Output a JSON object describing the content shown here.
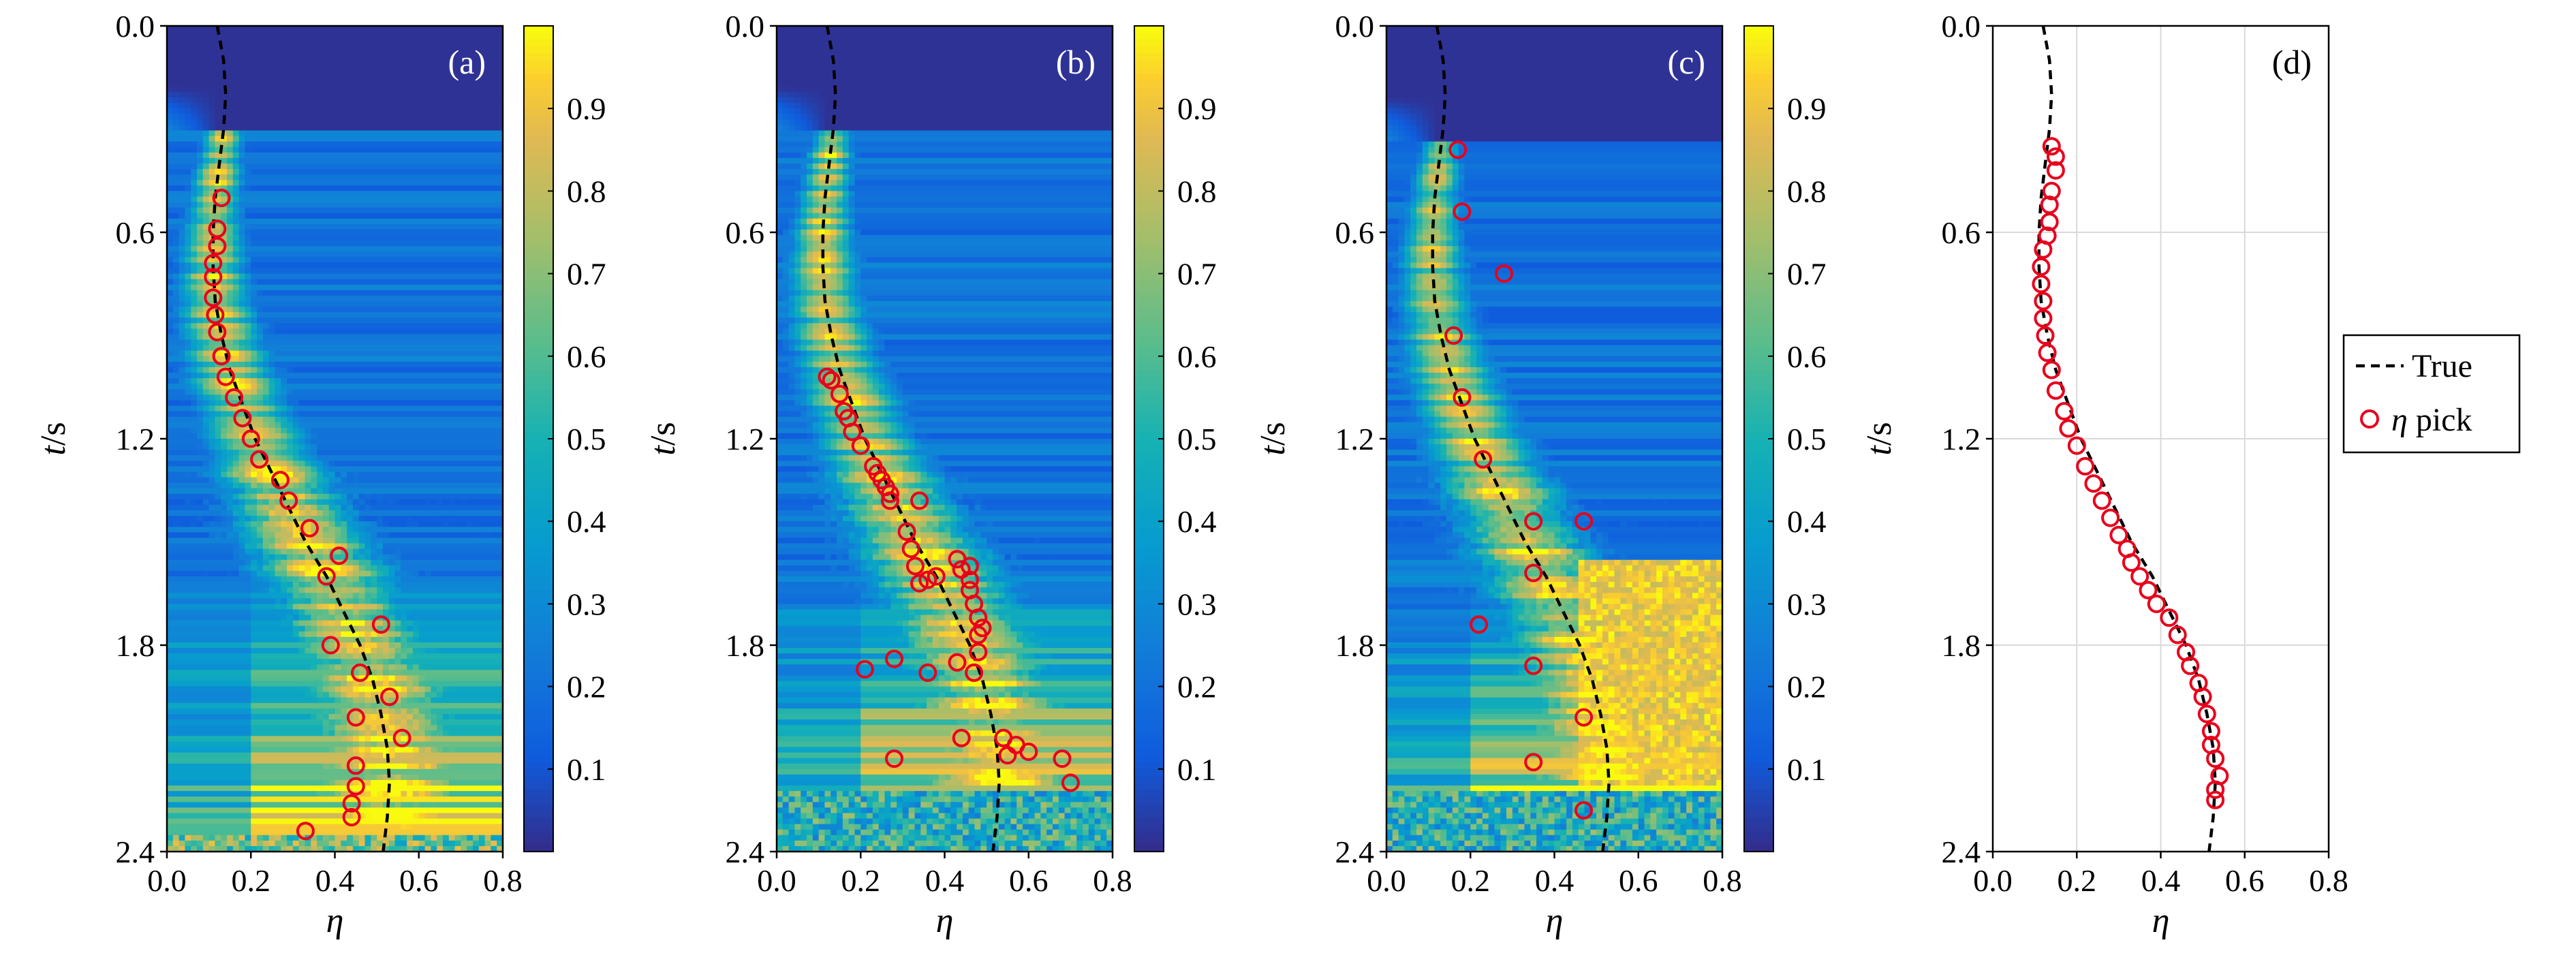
{
  "chart_data": [
    {
      "type": "heatmap",
      "panel_label": "(a)",
      "xlabel": "η",
      "ylabel": "t/s",
      "xlim": [
        0,
        0.8
      ],
      "ylim": [
        0,
        2.4
      ],
      "xticks": [
        "0.0",
        "0.2",
        "0.4",
        "0.6",
        "0.8"
      ],
      "yticks": [
        "0.0",
        "0.6",
        "1.2",
        "1.8",
        "2.4"
      ],
      "colorbar": {
        "range": [
          0,
          1
        ],
        "ticks": [
          "0.1",
          "0.2",
          "0.3",
          "0.4",
          "0.5",
          "0.6",
          "0.7",
          "0.8",
          "0.9"
        ]
      },
      "true_curve": {
        "t": [
          0,
          0.1,
          0.2,
          0.3,
          0.4,
          0.5,
          0.6,
          0.7,
          0.8,
          0.9,
          1.0,
          1.1,
          1.2,
          1.3,
          1.4,
          1.5,
          1.6,
          1.7,
          1.8,
          1.9,
          2.0,
          2.1,
          2.2,
          2.3,
          2.4
        ],
        "eta": [
          0.12,
          0.135,
          0.14,
          0.135,
          0.125,
          0.115,
          0.11,
          0.11,
          0.115,
          0.13,
          0.15,
          0.18,
          0.21,
          0.25,
          0.29,
          0.33,
          0.38,
          0.42,
          0.46,
          0.49,
          0.51,
          0.525,
          0.53,
          0.525,
          0.515
        ]
      },
      "picks": {
        "eta": [
          0.13,
          0.12,
          0.12,
          0.11,
          0.11,
          0.11,
          0.115,
          0.12,
          0.13,
          0.14,
          0.16,
          0.18,
          0.2,
          0.22,
          0.27,
          0.29,
          0.34,
          0.41,
          0.38,
          0.51,
          0.39,
          0.46,
          0.53,
          0.45,
          0.56,
          0.45,
          0.45,
          0.44,
          0.44,
          0.33
        ],
        "t": [
          0.5,
          0.59,
          0.64,
          0.69,
          0.73,
          0.79,
          0.84,
          0.89,
          0.96,
          1.02,
          1.08,
          1.14,
          1.2,
          1.26,
          1.32,
          1.38,
          1.46,
          1.54,
          1.6,
          1.74,
          1.8,
          1.88,
          1.95,
          2.01,
          2.07,
          2.15,
          2.21,
          2.26,
          2.3,
          2.34
        ]
      },
      "heat_ridge_start": 0.3
    },
    {
      "type": "heatmap",
      "panel_label": "(b)",
      "xlabel": "η",
      "ylabel": "t/s",
      "xlim": [
        0,
        0.8
      ],
      "ylim": [
        0,
        2.4
      ],
      "xticks": [
        "0.0",
        "0.2",
        "0.4",
        "0.6",
        "0.8"
      ],
      "yticks": [
        "0.0",
        "0.6",
        "1.2",
        "1.8",
        "2.4"
      ],
      "colorbar": {
        "range": [
          0,
          1
        ],
        "ticks": [
          "0.1",
          "0.2",
          "0.3",
          "0.4",
          "0.5",
          "0.6",
          "0.7",
          "0.8",
          "0.9"
        ]
      },
      "true_curve": {
        "t": [
          0,
          0.1,
          0.2,
          0.3,
          0.4,
          0.5,
          0.6,
          0.7,
          0.8,
          0.9,
          1.0,
          1.1,
          1.2,
          1.3,
          1.4,
          1.5,
          1.6,
          1.7,
          1.8,
          1.9,
          2.0,
          2.1,
          2.2,
          2.3,
          2.4
        ],
        "eta": [
          0.12,
          0.135,
          0.14,
          0.135,
          0.125,
          0.115,
          0.11,
          0.11,
          0.115,
          0.13,
          0.15,
          0.18,
          0.21,
          0.25,
          0.29,
          0.33,
          0.38,
          0.42,
          0.46,
          0.49,
          0.51,
          0.525,
          0.53,
          0.525,
          0.515
        ]
      },
      "picks": {
        "eta": [
          0.12,
          0.13,
          0.15,
          0.16,
          0.17,
          0.18,
          0.2,
          0.23,
          0.24,
          0.25,
          0.26,
          0.27,
          0.27,
          0.34,
          0.31,
          0.32,
          0.33,
          0.34,
          0.36,
          0.38,
          0.43,
          0.44,
          0.46,
          0.46,
          0.46,
          0.47,
          0.48,
          0.49,
          0.48,
          0.48,
          0.43,
          0.47,
          0.36,
          0.28,
          0.21,
          0.44,
          0.54,
          0.57,
          0.6,
          0.55,
          0.68,
          0.28,
          0.7
        ],
        "t": [
          1.02,
          1.03,
          1.07,
          1.12,
          1.14,
          1.18,
          1.22,
          1.28,
          1.3,
          1.32,
          1.34,
          1.36,
          1.38,
          1.38,
          1.47,
          1.52,
          1.57,
          1.62,
          1.61,
          1.6,
          1.55,
          1.58,
          1.57,
          1.61,
          1.64,
          1.68,
          1.72,
          1.75,
          1.77,
          1.82,
          1.85,
          1.88,
          1.88,
          1.84,
          1.87,
          2.07,
          2.07,
          2.09,
          2.11,
          2.12,
          2.13,
          2.13,
          2.2
        ]
      },
      "heat_ridge_start": 0.3
    },
    {
      "type": "heatmap",
      "panel_label": "(c)",
      "xlabel": "η",
      "ylabel": "t/s",
      "xlim": [
        0,
        0.8
      ],
      "ylim": [
        0,
        2.4
      ],
      "xticks": [
        "0.0",
        "0.2",
        "0.4",
        "0.6",
        "0.8"
      ],
      "yticks": [
        "0.0",
        "0.6",
        "1.2",
        "1.8",
        "2.4"
      ],
      "colorbar": {
        "range": [
          0,
          1
        ],
        "ticks": [
          "0.1",
          "0.2",
          "0.3",
          "0.4",
          "0.5",
          "0.6",
          "0.7",
          "0.8",
          "0.9"
        ]
      },
      "true_curve": {
        "t": [
          0,
          0.1,
          0.2,
          0.3,
          0.4,
          0.5,
          0.6,
          0.7,
          0.8,
          0.9,
          1.0,
          1.1,
          1.2,
          1.3,
          1.4,
          1.5,
          1.6,
          1.7,
          1.8,
          1.9,
          2.0,
          2.1,
          2.2,
          2.3,
          2.4
        ],
        "eta": [
          0.12,
          0.135,
          0.14,
          0.135,
          0.125,
          0.115,
          0.11,
          0.11,
          0.115,
          0.13,
          0.15,
          0.18,
          0.21,
          0.25,
          0.29,
          0.33,
          0.38,
          0.42,
          0.46,
          0.49,
          0.51,
          0.525,
          0.53,
          0.525,
          0.515
        ]
      },
      "picks": {
        "eta": [
          0.17,
          0.18,
          0.28,
          0.16,
          0.18,
          0.23,
          0.35,
          0.47,
          0.35,
          0.22,
          0.35,
          0.47,
          0.35,
          0.47
        ],
        "t": [
          0.36,
          0.54,
          0.72,
          0.9,
          1.08,
          1.26,
          1.44,
          1.44,
          1.59,
          1.74,
          1.86,
          2.01,
          2.14,
          2.28
        ]
      },
      "heat_ridge_start": 0.33
    },
    {
      "type": "scatter",
      "panel_label": "(d)",
      "xlabel": "η",
      "ylabel": "t/s",
      "xlim": [
        0,
        0.8
      ],
      "ylim": [
        0,
        2.4
      ],
      "xticks": [
        "0.0",
        "0.2",
        "0.4",
        "0.6",
        "0.8"
      ],
      "yticks": [
        "0.0",
        "0.6",
        "1.2",
        "1.8",
        "2.4"
      ],
      "grid": true,
      "true_curve": {
        "t": [
          0,
          0.1,
          0.2,
          0.3,
          0.4,
          0.5,
          0.6,
          0.7,
          0.8,
          0.9,
          1.0,
          1.1,
          1.2,
          1.3,
          1.4,
          1.5,
          1.6,
          1.7,
          1.8,
          1.9,
          2.0,
          2.1,
          2.2,
          2.3,
          2.4
        ],
        "eta": [
          0.12,
          0.135,
          0.14,
          0.135,
          0.125,
          0.115,
          0.11,
          0.11,
          0.115,
          0.13,
          0.15,
          0.18,
          0.21,
          0.25,
          0.29,
          0.33,
          0.38,
          0.42,
          0.46,
          0.49,
          0.51,
          0.525,
          0.53,
          0.525,
          0.515
        ]
      },
      "picks": {
        "eta": [
          0.14,
          0.15,
          0.15,
          0.14,
          0.135,
          0.135,
          0.13,
          0.12,
          0.115,
          0.115,
          0.12,
          0.12,
          0.125,
          0.13,
          0.14,
          0.15,
          0.17,
          0.18,
          0.2,
          0.22,
          0.24,
          0.26,
          0.28,
          0.3,
          0.32,
          0.33,
          0.35,
          0.37,
          0.39,
          0.42,
          0.44,
          0.46,
          0.47,
          0.49,
          0.5,
          0.51,
          0.52,
          0.52,
          0.53,
          0.54,
          0.53,
          0.53
        ],
        "t": [
          0.35,
          0.38,
          0.42,
          0.48,
          0.52,
          0.57,
          0.61,
          0.65,
          0.7,
          0.75,
          0.8,
          0.85,
          0.9,
          0.95,
          1.0,
          1.06,
          1.12,
          1.17,
          1.22,
          1.28,
          1.33,
          1.38,
          1.43,
          1.48,
          1.52,
          1.56,
          1.6,
          1.64,
          1.68,
          1.72,
          1.77,
          1.82,
          1.86,
          1.91,
          1.95,
          2.0,
          2.05,
          2.09,
          2.13,
          2.18,
          2.22,
          2.25
        ]
      }
    }
  ],
  "legend": {
    "entries": [
      "True",
      "η pick"
    ],
    "placement": "right"
  },
  "colors": {
    "pick": "#e8001c",
    "true_line": "#000000",
    "grid": "#d9d9d9"
  }
}
